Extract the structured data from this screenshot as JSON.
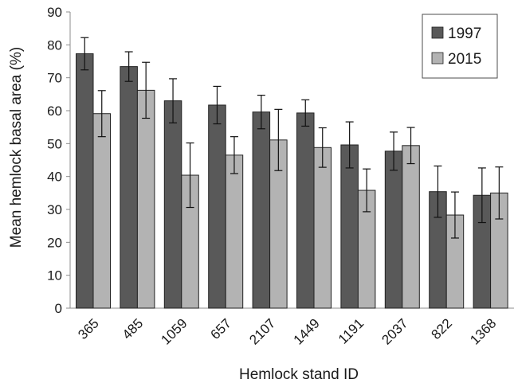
{
  "chart_data": {
    "type": "bar",
    "xlabel": "Hemlock stand ID",
    "ylabel": "Mean hemlock basal area (%)",
    "ylim": [
      0,
      90
    ],
    "yticks": [
      0,
      10,
      20,
      30,
      40,
      50,
      60,
      70,
      80,
      90
    ],
    "categories": [
      "365",
      "485",
      "1059",
      "657",
      "2107",
      "1449",
      "1191",
      "2037",
      "822",
      "1368"
    ],
    "series": [
      {
        "name": "1997",
        "color": "#595959",
        "values": [
          77.3,
          73.4,
          63.0,
          61.7,
          59.6,
          59.3,
          49.6,
          47.7,
          35.4,
          34.3
        ],
        "error": [
          4.9,
          4.5,
          6.7,
          5.7,
          5.1,
          4.0,
          7.0,
          5.8,
          7.8,
          8.3
        ]
      },
      {
        "name": "2015",
        "color": "#b3b3b3",
        "values": [
          59.1,
          66.2,
          40.4,
          46.5,
          51.1,
          48.8,
          35.8,
          49.4,
          28.3,
          35.0
        ],
        "error": [
          7.0,
          8.5,
          9.8,
          5.6,
          9.3,
          6.0,
          6.5,
          5.5,
          7.0,
          7.9
        ]
      }
    ],
    "legend_position": "top-right",
    "grid": false
  }
}
